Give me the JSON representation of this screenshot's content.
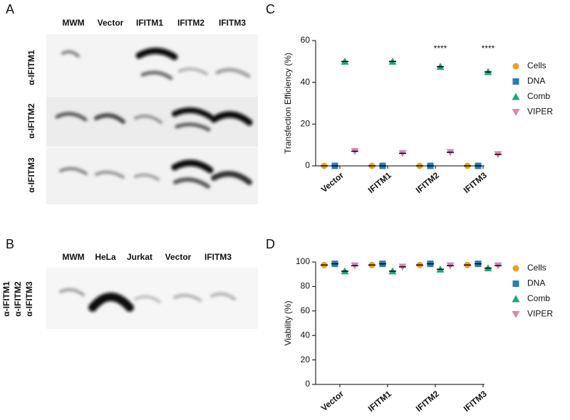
{
  "blots": [
    {
      "panel_label": "A",
      "lanes": [
        "MWM",
        "Vector",
        "IFITM1",
        "IFITM2",
        "IFITM3"
      ],
      "antibodies": [
        "α-IFITM1",
        "α-IFITM2",
        "α-IFITM3"
      ]
    },
    {
      "panel_label": "B",
      "lanes": [
        "MWM",
        "HeLa",
        "Jurkat",
        "Vector",
        "IFITM3"
      ],
      "antibodies": [
        "α-IFITM1",
        "α-IFITM2",
        "α-IFITM3"
      ]
    }
  ],
  "chart_data": [
    {
      "type": "dot",
      "panel_label": "C",
      "y_label": "Transfection Efficiency (%)",
      "categories": [
        "Vector",
        "IFITM1",
        "IFITM2",
        "IFITM3"
      ],
      "series": [
        {
          "name": "Cells",
          "color": "#e8a21c",
          "marker": "circle",
          "values": [
            0,
            0,
            0,
            0
          ]
        },
        {
          "name": "DNA",
          "color": "#2b7bb4",
          "marker": "square",
          "values": [
            0,
            0,
            0,
            0
          ]
        },
        {
          "name": "Comb",
          "color": "#1fa57a",
          "marker": "triangle",
          "values": [
            50,
            50,
            47.5,
            45
          ]
        },
        {
          "name": "VIPER",
          "color": "#d786b2",
          "marker": "triangle-down",
          "values": [
            7,
            6,
            6.5,
            5.5
          ]
        }
      ],
      "annotations": [
        {
          "text": "****",
          "category": 2
        },
        {
          "text": "****",
          "category": 3
        }
      ],
      "ylim": [
        0,
        60
      ],
      "yticks": [
        0,
        20,
        40,
        60
      ],
      "legend": "right"
    },
    {
      "type": "dot",
      "panel_label": "D",
      "y_label": "Viability (%)",
      "categories": [
        "Vector",
        "IFITM1",
        "IFITM2",
        "IFITM3"
      ],
      "series": [
        {
          "name": "Cells",
          "color": "#e8a21c",
          "marker": "circle",
          "values": [
            97.5,
            97.5,
            97.5,
            97.5
          ]
        },
        {
          "name": "DNA",
          "color": "#2b7bb4",
          "marker": "square",
          "values": [
            98.5,
            98.5,
            98.5,
            98.5
          ]
        },
        {
          "name": "Comb",
          "color": "#1fa57a",
          "marker": "triangle",
          "values": [
            92.5,
            92.5,
            94,
            95
          ]
        },
        {
          "name": "VIPER",
          "color": "#d786b2",
          "marker": "triangle-down",
          "values": [
            97,
            96,
            97,
            97
          ]
        }
      ],
      "ylim": [
        0,
        100
      ],
      "yticks": [
        0,
        20,
        40,
        60,
        80,
        100
      ],
      "legend": "right"
    }
  ]
}
